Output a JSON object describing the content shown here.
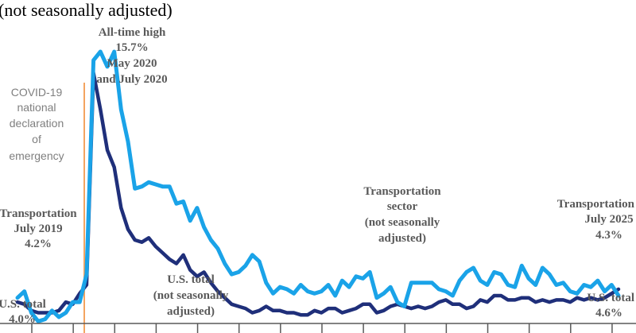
{
  "chart_data": {
    "type": "line",
    "subtitle": "(not seasonally adjusted)",
    "x_start": "July 2019",
    "x_end": "July 2025",
    "ylim": [
      3,
      17
    ],
    "series": [
      {
        "name": "Transportation sector (not seasonally adjusted)",
        "color": "#1aa3e8",
        "values": [
          4.2,
          4.5,
          3.5,
          3.1,
          3.2,
          3.6,
          3.3,
          3.5,
          4.0,
          4.0,
          5.3,
          15.3,
          15.7,
          15.0,
          15.7,
          13.0,
          11.5,
          9.3,
          9.4,
          9.6,
          9.5,
          9.4,
          9.4,
          8.6,
          8.7,
          7.8,
          8.4,
          7.5,
          6.9,
          6.5,
          5.8,
          5.3,
          5.4,
          5.7,
          6.2,
          5.9,
          4.9,
          4.4,
          4.7,
          4.6,
          4.4,
          4.8,
          4.5,
          4.4,
          4.5,
          4.8,
          4.3,
          5.0,
          4.7,
          5.2,
          5.1,
          5.4,
          4.2,
          4.4,
          4.7,
          4.0,
          3.8,
          4.9,
          4.9,
          4.9,
          4.9,
          4.6,
          4.5,
          4.3,
          5.0,
          5.4,
          5.6,
          5.0,
          4.8,
          5.4,
          5.3,
          4.8,
          4.7,
          5.7,
          5.1,
          4.8,
          5.6,
          5.3,
          4.8,
          4.9,
          4.5,
          4.4,
          4.8,
          4.7,
          5.0,
          4.5,
          4.8,
          4.3
        ]
      },
      {
        "name": "U.S. total (not seasonally adjusted)",
        "color": "#1f2f7a",
        "values": [
          4.0,
          3.9,
          3.6,
          3.5,
          3.5,
          3.5,
          3.6,
          4.0,
          3.9,
          4.4,
          4.8,
          14.7,
          13.0,
          11.1,
          10.3,
          8.4,
          7.4,
          6.9,
          6.8,
          7.0,
          6.6,
          6.3,
          6.0,
          5.8,
          6.2,
          5.5,
          5.2,
          5.4,
          4.9,
          4.5,
          4.2,
          3.9,
          3.8,
          3.7,
          3.5,
          3.6,
          3.8,
          3.6,
          3.6,
          3.5,
          3.5,
          3.4,
          3.4,
          3.6,
          3.5,
          3.7,
          3.7,
          3.5,
          3.6,
          3.7,
          3.9,
          3.9,
          3.5,
          3.6,
          3.8,
          3.9,
          3.8,
          3.7,
          3.8,
          3.7,
          3.8,
          4.0,
          4.1,
          3.9,
          3.9,
          3.7,
          3.8,
          4.1,
          4.0,
          4.3,
          4.3,
          4.1,
          4.1,
          4.2,
          4.2,
          4.0,
          4.1,
          4.0,
          4.1,
          4.1,
          4.0,
          4.2,
          4.1,
          4.2,
          4.1,
          4.2,
          4.4,
          4.6
        ]
      }
    ],
    "vertical_line": {
      "label": "COVID-19 national declaration of emergency",
      "color": "#f4a460"
    },
    "annotations": {
      "peak": [
        "All-time high",
        "15.7%",
        "May 2020",
        "and July 2020"
      ],
      "covid": [
        "COVID-19",
        "national",
        "declaration",
        "of",
        "emergency"
      ],
      "transport_start": [
        "Transportation",
        "July 2019",
        "4.2%"
      ],
      "us_start": [
        "U.S. total",
        "4.0%"
      ],
      "us_label": [
        "U.S. total",
        "(not seasonally",
        "adjusted)"
      ],
      "transport_label": [
        "Transportation",
        "sector",
        "(not seasonally",
        "adjusted)"
      ],
      "transport_end": [
        "Transportation",
        "July 2025",
        "4.3%"
      ],
      "us_end": [
        "U.S. total",
        "4.6%"
      ]
    }
  }
}
